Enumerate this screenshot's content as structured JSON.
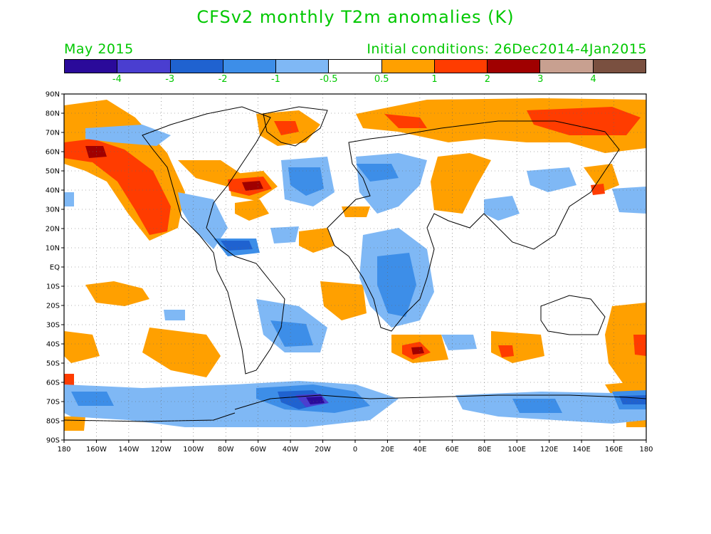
{
  "title": "CFSv2 monthly T2m anomalies (K)",
  "valid_month": "May 2015",
  "initial_conditions": "Initial conditions: 26Dec2014-4Jan2015",
  "colorbar": {
    "colors": [
      "#2a0a9a",
      "#4a3ed0",
      "#1f62d0",
      "#3d8ee8",
      "#7fb8f5",
      "#ffffff",
      "#ffa000",
      "#ff3c00",
      "#a00000",
      "#c8a090",
      "#7a5040"
    ],
    "labels": [
      "-4",
      "-3",
      "-2",
      "-1",
      "-0.5",
      "0.5",
      "1",
      "2",
      "3",
      "4"
    ]
  },
  "chart_data": {
    "type": "map",
    "projection": "equirectangular",
    "grid": true,
    "lon_ticks": [
      "180",
      "160W",
      "140W",
      "120W",
      "100W",
      "80W",
      "60W",
      "40W",
      "20W",
      "0",
      "20E",
      "40E",
      "60E",
      "80E",
      "100E",
      "120E",
      "140E",
      "160E",
      "180"
    ],
    "lat_ticks": [
      "90N",
      "80N",
      "70N",
      "60N",
      "50N",
      "40N",
      "30N",
      "20N",
      "10N",
      "EQ",
      "10S",
      "20S",
      "30S",
      "40S",
      "50S",
      "60S",
      "70S",
      "80S",
      "90S"
    ]
  }
}
